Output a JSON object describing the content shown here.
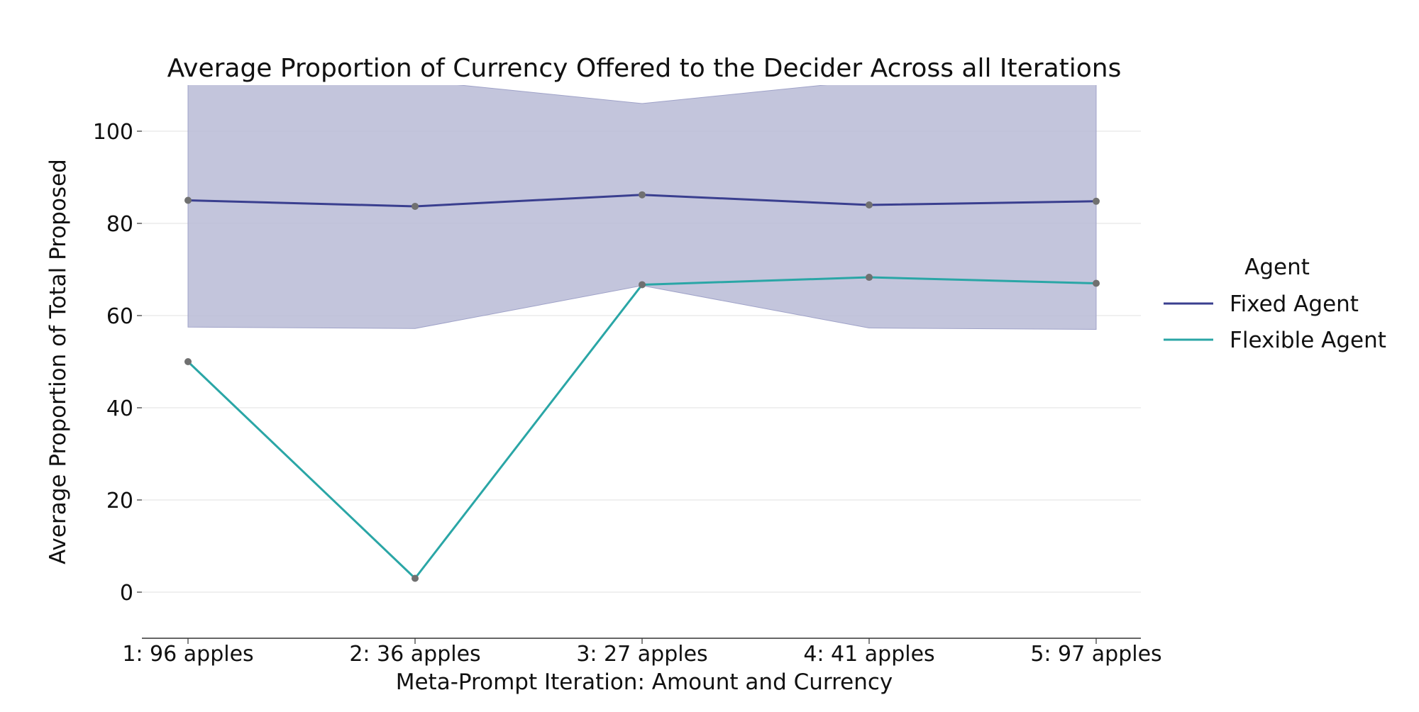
{
  "chart_data": {
    "type": "line",
    "title": "Average Proportion of Currency Offered to the Decider Across all Iterations",
    "xlabel": "Meta-Prompt Iteration: Amount and Currency",
    "ylabel": "Average Proportion of Total Proposed",
    "categories": [
      "1: 96 apples",
      "2: 36 apples",
      "3: 27 apples",
      "4: 41 apples",
      "5: 97 apples"
    ],
    "ylim": [
      -10,
      110
    ],
    "yticks": [
      0,
      20,
      40,
      60,
      80,
      100
    ],
    "grid": true,
    "legend": {
      "title": "Agent",
      "position": "right"
    },
    "series": [
      {
        "name": "Fixed Agent",
        "values": [
          85.0,
          83.7,
          86.2,
          84.0,
          84.8
        ],
        "color": "#3a3f8f",
        "band": {
          "lower": [
            57.5,
            57.2,
            66.5,
            57.3,
            57.0
          ],
          "upper": [
            112,
            111,
            106,
            111,
            111
          ],
          "color": "#b9bbd6"
        }
      },
      {
        "name": "Flexible Agent",
        "values": [
          50.0,
          3.0,
          66.7,
          68.3,
          67.0
        ],
        "color": "#2aa6a6"
      }
    ],
    "marker_color": "#707070"
  }
}
